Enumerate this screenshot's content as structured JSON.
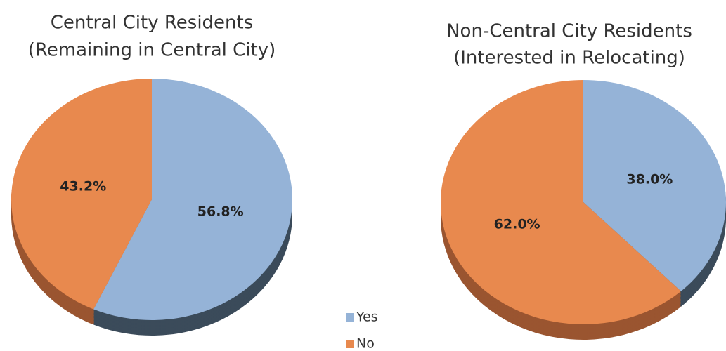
{
  "chart_data": [
    {
      "type": "pie",
      "title": "Central City Residents",
      "subtitle": "(Remaining in Central City)",
      "values": [
        56.8,
        43.2
      ],
      "value_labels": [
        "56.8%",
        "43.2%"
      ]
    },
    {
      "type": "pie",
      "title": "Non-Central City Residents",
      "subtitle": "(Interested in Relocating)",
      "values": [
        38.0,
        62.0
      ],
      "value_labels": [
        "38.0%",
        "62.0%"
      ]
    }
  ],
  "legend": {
    "labels": [
      "Yes",
      "No"
    ],
    "colors": [
      "#95b3d7",
      "#e8894e"
    ],
    "side_colors": [
      "#3b4b5a",
      "#9a5530"
    ]
  }
}
